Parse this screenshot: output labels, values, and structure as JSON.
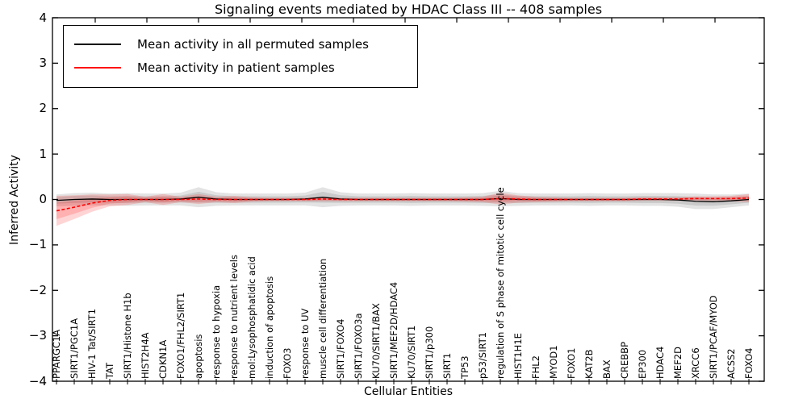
{
  "title": "Signaling events mediated by HDAC Class III -- 408 samples",
  "legend": {
    "items": [
      {
        "label": "Mean activity in all permuted samples",
        "color": "#000000"
      },
      {
        "label": "Mean activity in patient samples",
        "color": "#ff0000"
      }
    ]
  },
  "chart_data": {
    "type": "line",
    "title": "Signaling events mediated by HDAC Class III -- 408 samples",
    "xlabel": "Cellular Entities",
    "ylabel": "Inferred Activity",
    "ylim": [
      -4,
      4
    ],
    "yticks": [
      4,
      3,
      2,
      1,
      0,
      -1,
      -2,
      -3,
      -4
    ],
    "grid": false,
    "legend_position": "upper left",
    "categories": [
      "PPARGC1A",
      "SIRT1/PGC1A",
      "HIV-1 Tat/SIRT1",
      "TAT",
      "SIRT1/Histone H1b",
      "HIST2H4A",
      "CDKN1A",
      "FOXO1/FHL2/SIRT1",
      "apoptosis",
      "response to hypoxia",
      "response to nutrient levels",
      "mol:Lysophosphatidic acid",
      "induction of apoptosis",
      "FOXO3",
      "response to UV",
      "muscle cell differentiation",
      "SIRT1/FOXO4",
      "SIRT1/FOXO3a",
      "KU70/SIRT1/BAX",
      "SIRT1/MEF2D/HDAC4",
      "KU70/SIRT1",
      "SIRT1/p300",
      "SIRT1",
      "TP53",
      "p53/SIRT1",
      "regulation of S phase of mitotic cell cycle",
      "HIST1H1E",
      "FHL2",
      "MYOD1",
      "FOXO1",
      "KAT2B",
      "BAX",
      "CREBBP",
      "EP300",
      "HDAC4",
      "MEF2D",
      "XRCC6",
      "SIRT1/PCAF/MYOD",
      "ACSS2",
      "FOXO4"
    ],
    "series": [
      {
        "name": "Mean activity in all permuted samples",
        "color": "#000000",
        "style": "solid",
        "values": [
          -0.02,
          0.0,
          0.01,
          0.0,
          0.0,
          0.0,
          0.0,
          0.01,
          0.05,
          0.01,
          0.0,
          0.0,
          0.0,
          0.0,
          0.01,
          0.05,
          0.01,
          0.0,
          0.0,
          0.0,
          0.0,
          0.0,
          0.0,
          0.0,
          0.0,
          0.02,
          0.0,
          0.0,
          0.0,
          0.0,
          0.0,
          0.0,
          0.0,
          0.0,
          0.0,
          -0.01,
          -0.04,
          -0.05,
          -0.03,
          0.0
        ],
        "band_halfwidth": [
          0.13,
          0.14,
          0.14,
          0.13,
          0.14,
          0.13,
          0.13,
          0.14,
          0.22,
          0.15,
          0.13,
          0.13,
          0.13,
          0.13,
          0.14,
          0.22,
          0.15,
          0.13,
          0.13,
          0.13,
          0.14,
          0.13,
          0.13,
          0.13,
          0.14,
          0.17,
          0.14,
          0.13,
          0.13,
          0.13,
          0.14,
          0.13,
          0.13,
          0.14,
          0.14,
          0.15,
          0.17,
          0.16,
          0.14,
          0.13
        ],
        "band_color": "#000000",
        "band_opacity": 0.11
      },
      {
        "name": "Mean activity in patient samples",
        "color": "#ff0000",
        "style": "dashed",
        "values": [
          -0.25,
          -0.17,
          -0.08,
          -0.02,
          0.0,
          0.0,
          0.0,
          0.0,
          0.01,
          0.0,
          0.0,
          0.0,
          0.0,
          0.0,
          0.0,
          0.01,
          0.0,
          0.0,
          0.0,
          0.0,
          0.0,
          0.0,
          0.0,
          0.0,
          0.0,
          0.02,
          0.01,
          0.0,
          0.0,
          0.0,
          0.0,
          0.0,
          0.0,
          0.01,
          0.01,
          0.01,
          0.02,
          0.02,
          0.02,
          0.03
        ],
        "band_halfwidth": [
          0.33,
          0.26,
          0.19,
          0.13,
          0.12,
          0.06,
          0.12,
          0.06,
          0.11,
          0.06,
          0.08,
          0.05,
          0.04,
          0.04,
          0.04,
          0.05,
          0.04,
          0.04,
          0.04,
          0.04,
          0.04,
          0.04,
          0.04,
          0.05,
          0.06,
          0.13,
          0.08,
          0.06,
          0.05,
          0.04,
          0.04,
          0.04,
          0.04,
          0.04,
          0.04,
          0.04,
          0.05,
          0.05,
          0.06,
          0.09
        ],
        "band_color": "#ff0000",
        "band_opacity": 0.17
      }
    ]
  }
}
